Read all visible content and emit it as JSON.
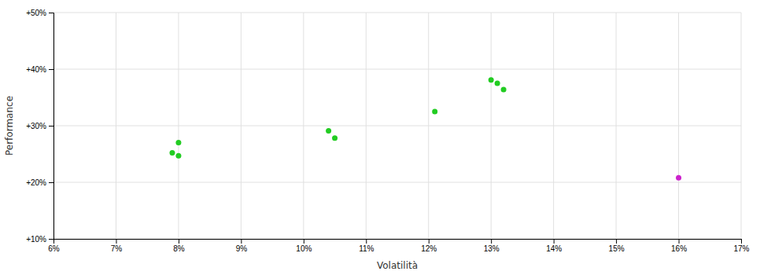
{
  "chart_data": {
    "type": "scatter",
    "xlabel": "Volatilità",
    "ylabel": "Performance",
    "xlim": [
      0.06,
      0.17
    ],
    "ylim": [
      0.1,
      0.5
    ],
    "xticks": [
      {
        "value": 0.06,
        "label": "6%"
      },
      {
        "value": 0.07,
        "label": "7%"
      },
      {
        "value": 0.08,
        "label": "8%"
      },
      {
        "value": 0.09,
        "label": "9%"
      },
      {
        "value": 0.1,
        "label": "10%"
      },
      {
        "value": 0.11,
        "label": "11%"
      },
      {
        "value": 0.12,
        "label": "12%"
      },
      {
        "value": 0.13,
        "label": "13%"
      },
      {
        "value": 0.14,
        "label": "14%"
      },
      {
        "value": 0.15,
        "label": "15%"
      },
      {
        "value": 0.16,
        "label": "16%"
      },
      {
        "value": 0.17,
        "label": "17%"
      }
    ],
    "yticks": [
      {
        "value": 0.1,
        "label": "+10%"
      },
      {
        "value": 0.2,
        "label": "+20%"
      },
      {
        "value": 0.3,
        "label": "+30%"
      },
      {
        "value": 0.4,
        "label": "+40%"
      },
      {
        "value": 0.5,
        "label": "+50%"
      }
    ],
    "grid": true,
    "series": [
      {
        "color": "#22cc22",
        "x": [
          0.08,
          0.079,
          0.08,
          0.104,
          0.105,
          0.121,
          0.13,
          0.131,
          0.132
        ],
        "values": [
          0.27,
          0.252,
          0.247,
          0.291,
          0.278,
          0.325,
          0.381,
          0.375,
          0.364
        ]
      },
      {
        "color": "#cc22cc",
        "x": [
          0.16
        ],
        "values": [
          0.208
        ]
      }
    ]
  }
}
